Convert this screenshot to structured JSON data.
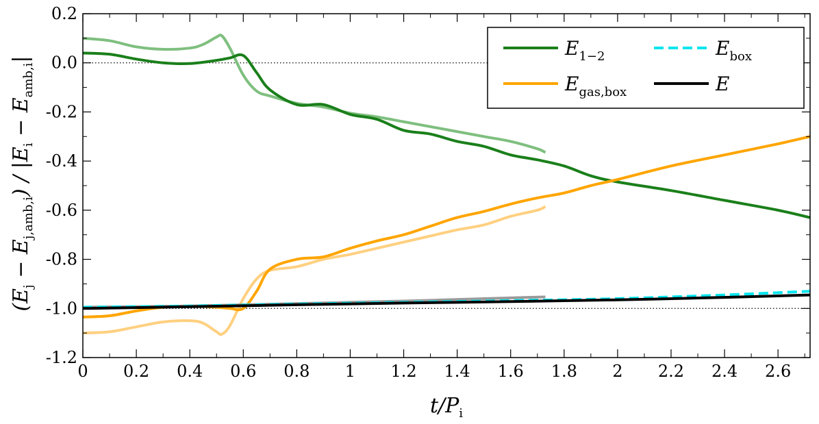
{
  "chart_data": {
    "type": "line",
    "title": "",
    "xlabel": "t/P_i",
    "ylabel": "(E_j − E_{j,amb,i}) / |E_i − E_amb,i|",
    "xlim": [
      0,
      2.72
    ],
    "ylim": [
      -1.2,
      0.2
    ],
    "xticks": [
      0,
      0.2,
      0.4,
      0.6,
      0.8,
      1,
      1.2,
      1.4,
      1.6,
      1.8,
      2,
      2.2,
      2.4,
      2.6
    ],
    "xtick_labels": [
      "0",
      "0.2",
      "0.4",
      "0.6",
      "0.8",
      "1",
      "1.2",
      "1.4",
      "1.6",
      "1.8",
      "2",
      "2.2",
      "2.4",
      "2.6"
    ],
    "yticks": [
      -1.2,
      -1.0,
      -0.8,
      -0.6,
      -0.4,
      -0.2,
      0.0,
      0.2
    ],
    "ytick_labels": [
      "-1.2",
      "-1.0",
      "-0.8",
      "-0.6",
      "-0.4",
      "-0.2",
      "0.0",
      "0.2"
    ],
    "reference_lines": [
      0.0,
      -1.0
    ],
    "legend_position": "top-right",
    "legend": [
      {
        "main": "E",
        "sub": "1−2",
        "color": "#1a7f1a",
        "dashed": false
      },
      {
        "main": "E",
        "sub": "box",
        "color": "#00e5ee",
        "dashed": true
      },
      {
        "main": "E",
        "sub": "gas,box",
        "color": "#ffa500",
        "dashed": false
      },
      {
        "main": "E",
        "sub": "",
        "color": "#000000",
        "dashed": false
      }
    ],
    "series": [
      {
        "name": "E_1-2 (faded run)",
        "color": "#7fbf7f",
        "dashed": false,
        "x": [
          0,
          0.1,
          0.2,
          0.3,
          0.4,
          0.45,
          0.5,
          0.52,
          0.55,
          0.6,
          0.65,
          0.7,
          0.8,
          0.9,
          1.0,
          1.1,
          1.2,
          1.3,
          1.4,
          1.5,
          1.6,
          1.7,
          1.73
        ],
        "y": [
          0.1,
          0.09,
          0.065,
          0.055,
          0.06,
          0.075,
          0.105,
          0.11,
          0.06,
          -0.05,
          -0.115,
          -0.135,
          -0.165,
          -0.18,
          -0.205,
          -0.22,
          -0.24,
          -0.26,
          -0.28,
          -0.3,
          -0.32,
          -0.35,
          -0.365
        ]
      },
      {
        "name": "E_1-2",
        "color": "#1a7f1a",
        "dashed": false,
        "x": [
          0,
          0.1,
          0.2,
          0.3,
          0.4,
          0.5,
          0.55,
          0.6,
          0.65,
          0.7,
          0.8,
          0.9,
          1.0,
          1.1,
          1.2,
          1.3,
          1.4,
          1.5,
          1.6,
          1.7,
          1.8,
          1.9,
          2.0,
          2.2,
          2.4,
          2.6,
          2.72
        ],
        "y": [
          0.04,
          0.035,
          0.015,
          0.0,
          -0.003,
          0.01,
          0.02,
          0.03,
          -0.04,
          -0.11,
          -0.17,
          -0.17,
          -0.21,
          -0.23,
          -0.275,
          -0.29,
          -0.32,
          -0.34,
          -0.375,
          -0.395,
          -0.42,
          -0.46,
          -0.485,
          -0.52,
          -0.56,
          -0.6,
          -0.63
        ]
      },
      {
        "name": "E_gas,box (faded run)",
        "color": "#ffd080",
        "dashed": false,
        "x": [
          0,
          0.1,
          0.2,
          0.3,
          0.4,
          0.45,
          0.5,
          0.52,
          0.55,
          0.6,
          0.65,
          0.7,
          0.8,
          0.9,
          1.0,
          1.1,
          1.2,
          1.3,
          1.4,
          1.5,
          1.6,
          1.7,
          1.73
        ],
        "y": [
          -1.1,
          -1.095,
          -1.075,
          -1.055,
          -1.05,
          -1.06,
          -1.095,
          -1.105,
          -1.07,
          -0.96,
          -0.88,
          -0.845,
          -0.83,
          -0.8,
          -0.78,
          -0.755,
          -0.73,
          -0.705,
          -0.68,
          -0.66,
          -0.625,
          -0.6,
          -0.585
        ]
      },
      {
        "name": "E_gas,box",
        "color": "#ffa500",
        "dashed": false,
        "x": [
          0,
          0.1,
          0.2,
          0.3,
          0.4,
          0.5,
          0.55,
          0.6,
          0.65,
          0.7,
          0.8,
          0.9,
          1.0,
          1.1,
          1.2,
          1.3,
          1.4,
          1.5,
          1.6,
          1.7,
          1.8,
          1.9,
          2.0,
          2.2,
          2.4,
          2.6,
          2.72
        ],
        "y": [
          -1.035,
          -1.03,
          -1.01,
          -0.995,
          -0.99,
          -0.995,
          -1.0,
          -1.0,
          -0.93,
          -0.84,
          -0.8,
          -0.79,
          -0.755,
          -0.725,
          -0.7,
          -0.665,
          -0.63,
          -0.605,
          -0.575,
          -0.55,
          -0.53,
          -0.5,
          -0.475,
          -0.42,
          -0.375,
          -0.33,
          -0.3
        ]
      },
      {
        "name": "E_box (faded run)",
        "color": "#9a9a9a",
        "dashed": false,
        "x": [
          0,
          0.4,
          0.8,
          1.2,
          1.6,
          1.73
        ],
        "y": [
          -0.995,
          -0.99,
          -0.98,
          -0.97,
          -0.957,
          -0.953
        ]
      },
      {
        "name": "E_box",
        "color": "#00e5ee",
        "dashed": true,
        "x": [
          0,
          0.4,
          0.8,
          1.2,
          1.6,
          2.0,
          2.4,
          2.72
        ],
        "y": [
          -0.995,
          -0.99,
          -0.982,
          -0.975,
          -0.968,
          -0.96,
          -0.945,
          -0.93
        ]
      },
      {
        "name": "E",
        "color": "#000000",
        "dashed": false,
        "x": [
          0,
          0.4,
          0.8,
          1.2,
          1.6,
          2.0,
          2.4,
          2.72
        ],
        "y": [
          -1.0,
          -0.993,
          -0.985,
          -0.978,
          -0.972,
          -0.965,
          -0.955,
          -0.945
        ]
      }
    ]
  }
}
